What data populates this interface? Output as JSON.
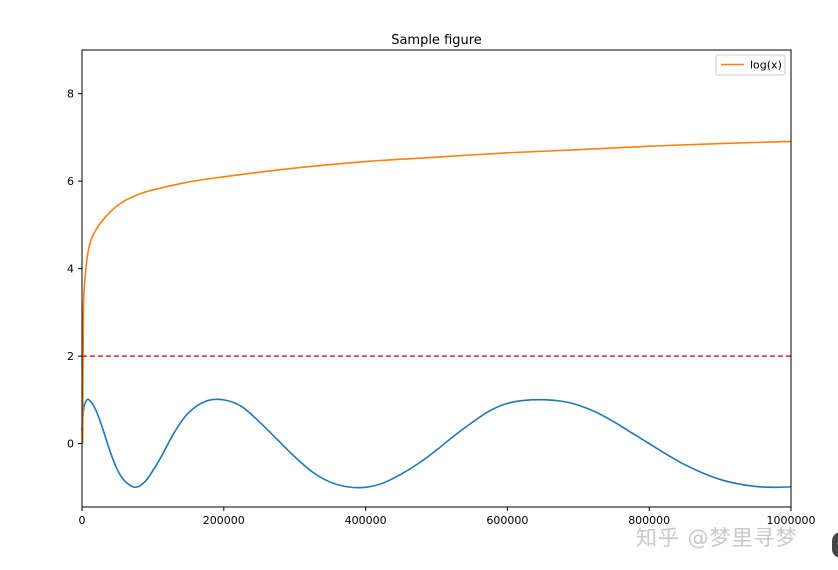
{
  "chart_data": {
    "type": "line",
    "title": "Sample figure",
    "xlabel": "",
    "ylabel": "",
    "xlim": [
      0,
      1000000
    ],
    "ylim": [
      -1.45,
      9.0
    ],
    "xticks": [
      0,
      200000,
      400000,
      600000,
      800000,
      1000000
    ],
    "xtick_labels": [
      "0",
      "200000",
      "400000",
      "600000",
      "800000",
      "1000000"
    ],
    "yticks": [
      0,
      2,
      4,
      6,
      8
    ],
    "ytick_labels": [
      "0",
      "2",
      "4",
      "6",
      "8"
    ],
    "grid": false,
    "legend": {
      "placement": "top-right",
      "entries": [
        "log(x)"
      ]
    },
    "series": [
      {
        "color": "#1f77b4",
        "x": [
          0,
          2000,
          5000,
          10000,
          20000,
          30000,
          40000,
          50000,
          60000,
          75000,
          90000,
          110000,
          130000,
          150000,
          175000,
          200000,
          225000,
          250000,
          275000,
          300000,
          325000,
          350000,
          375000,
          400000,
          425000,
          450000,
          475000,
          500000,
          525000,
          550000,
          575000,
          600000,
          625000,
          655000,
          680000,
          700000,
          725000,
          750000,
          775000,
          800000,
          825000,
          850000,
          875000,
          900000,
          925000,
          950000,
          975000,
          1000000
        ],
        "y": [
          0.3,
          0.75,
          0.95,
          1.0,
          0.75,
          0.3,
          -0.2,
          -0.6,
          -0.85,
          -1.0,
          -0.85,
          -0.35,
          0.25,
          0.7,
          0.97,
          1.0,
          0.85,
          0.5,
          0.1,
          -0.3,
          -0.65,
          -0.88,
          -0.99,
          -1.0,
          -0.9,
          -0.7,
          -0.45,
          -0.15,
          0.18,
          0.48,
          0.75,
          0.92,
          0.99,
          1.0,
          0.96,
          0.88,
          0.72,
          0.5,
          0.25,
          0.0,
          -0.25,
          -0.48,
          -0.67,
          -0.82,
          -0.92,
          -0.98,
          -1.0,
          -0.99
        ]
      },
      {
        "name": "log(x)",
        "color": "#ff7f0e",
        "x": [
          1000,
          2000,
          5000,
          10000,
          20000,
          40000,
          60000,
          80000,
          100000,
          150000,
          200000,
          300000,
          400000,
          500000,
          600000,
          700000,
          800000,
          900000,
          1000000
        ],
        "y": [
          0.0,
          3.0,
          3.9,
          4.5,
          4.9,
          5.3,
          5.55,
          5.7,
          5.8,
          5.98,
          6.1,
          6.3,
          6.45,
          6.55,
          6.65,
          6.72,
          6.8,
          6.86,
          6.91
        ]
      }
    ],
    "reference_lines": [
      {
        "orientation": "horizontal",
        "y": 2,
        "style": "dashed",
        "color": "#d62728"
      }
    ]
  },
  "watermark": "知乎 @梦里寻梦"
}
